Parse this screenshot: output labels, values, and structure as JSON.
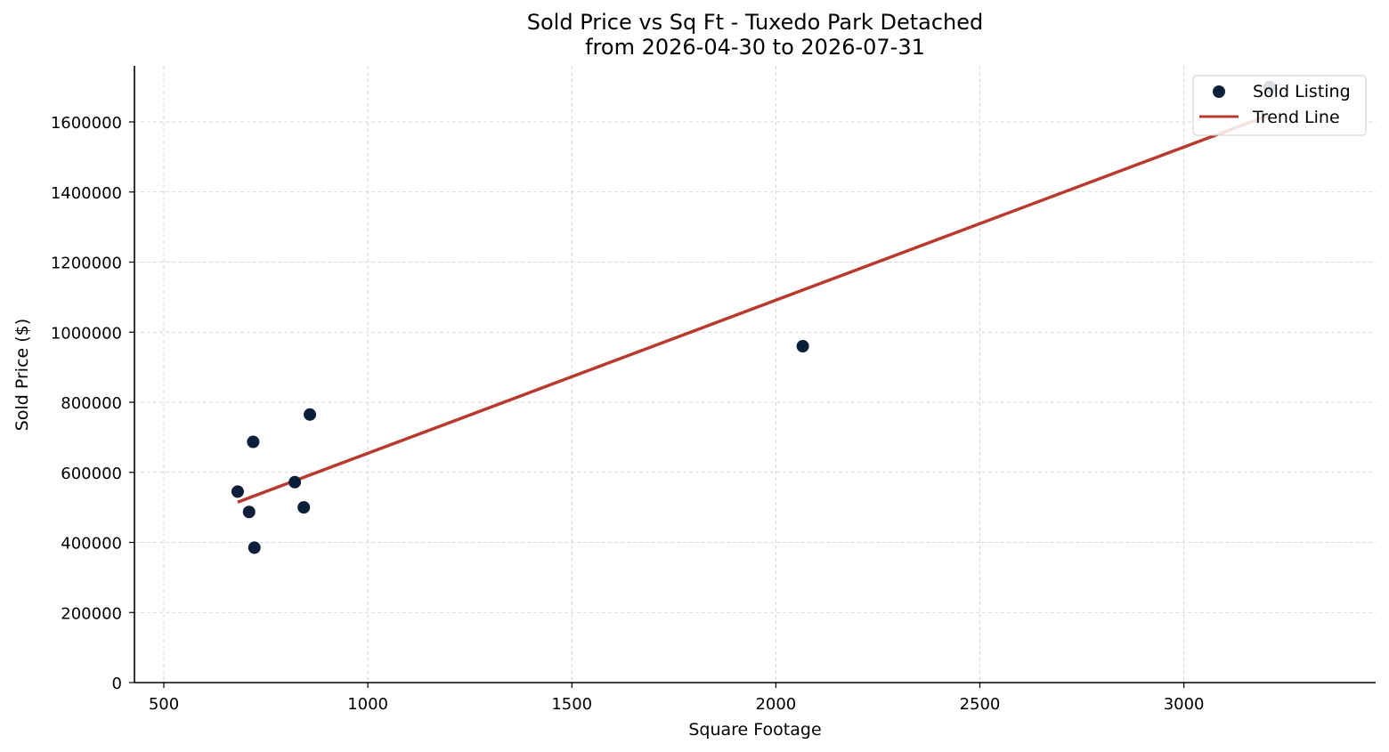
{
  "chart_data": {
    "type": "scatter",
    "title": "Sold Price vs Sq Ft - Tuxedo Park Detached",
    "subtitle": "from 2026-04-30 to 2026-07-31",
    "xlabel": "Square Footage",
    "ylabel": "Sold Price ($)",
    "xlim": [
      428,
      3470
    ],
    "ylim": [
      0,
      1760000
    ],
    "x_ticks": [
      500,
      1000,
      1500,
      2000,
      2500,
      3000
    ],
    "y_ticks": [
      0,
      200000,
      400000,
      600000,
      800000,
      1000000,
      1200000,
      1400000,
      1600000
    ],
    "grid": true,
    "legend_position": "top-right",
    "series": [
      {
        "name": "Sold Listing",
        "kind": "scatter",
        "color": "#0b1f3a",
        "points": [
          {
            "x": 681,
            "y": 545000
          },
          {
            "x": 709,
            "y": 487000
          },
          {
            "x": 719,
            "y": 687000
          },
          {
            "x": 722,
            "y": 385000
          },
          {
            "x": 821,
            "y": 572000
          },
          {
            "x": 843,
            "y": 500000
          },
          {
            "x": 858,
            "y": 765000
          },
          {
            "x": 2066,
            "y": 960000
          },
          {
            "x": 3210,
            "y": 1700000
          }
        ]
      },
      {
        "name": "Trend Line",
        "kind": "line",
        "color": "#b83a2e",
        "points": [
          {
            "x": 681,
            "y": 515000
          },
          {
            "x": 3210,
            "y": 1620000
          }
        ]
      }
    ]
  }
}
